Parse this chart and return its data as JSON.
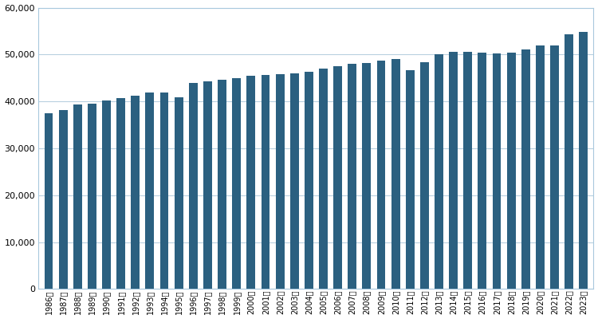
{
  "years": [
    "1986年",
    "1987年",
    "1988年",
    "1989年",
    "1990年",
    "1991年",
    "1992年",
    "1993年",
    "1994年",
    "1995年",
    "1996年",
    "1997年",
    "1998年",
    "1999年",
    "2000年",
    "2001年",
    "2002年",
    "2003年",
    "2004年",
    "2005年",
    "2006年",
    "2007年",
    "2008年",
    "2009年",
    "2010年",
    "2011年",
    "2012年",
    "2013年",
    "2014年",
    "2015年",
    "2016年",
    "2017年",
    "2018年",
    "2019年",
    "2020年",
    "2021年",
    "2022年",
    "2023年"
  ],
  "values": [
    37544,
    38130,
    39417,
    39500,
    40273,
    40650,
    41210,
    41826,
    41910,
    40838,
    43907,
    44360,
    44680,
    44922,
    45545,
    45664,
    45799,
    46018,
    46323,
    47043,
    47531,
    48023,
    48219,
    48638,
    49013,
    46618,
    48431,
    50110,
    50565,
    50490,
    50352,
    50253,
    50425,
    51079,
    51904,
    51946,
    54310,
    54780
  ],
  "bar_color": "#2B6080",
  "ylim": [
    0,
    60000
  ],
  "yticks": [
    0,
    10000,
    20000,
    30000,
    40000,
    50000,
    60000
  ],
  "grid_color": "#b8d0e0",
  "background_color": "#ffffff",
  "tick_fontsize": 7,
  "bar_width": 0.6
}
